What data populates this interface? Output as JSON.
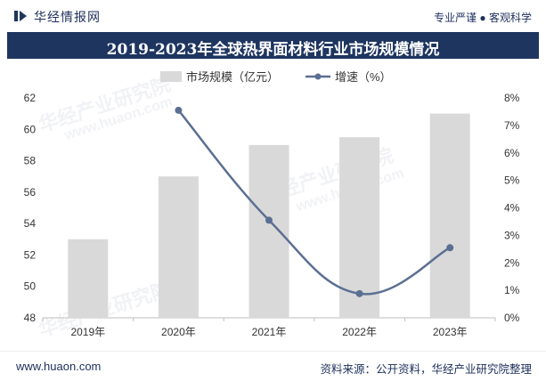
{
  "header": {
    "brand_icon": "huajing-logo-icon",
    "brand_name": "华经情报网",
    "slogan": "专业严谨 ● 客观科学"
  },
  "title": "2019-2023年全球热界面材料行业市场规模情况",
  "footer": {
    "website": "www.huaon.com",
    "source": "资料来源：公开资料，华经产业研究院整理"
  },
  "watermark": {
    "text": "华经产业研究院",
    "url": "www.huaon.com"
  },
  "colors": {
    "bar": "#d9d9d9",
    "line": "#5b6f93",
    "header_bg": "#1e3560",
    "text": "#1d2f5c"
  },
  "chart_data": {
    "type": "bar+line",
    "title": "2019-2023年全球热界面材料行业市场规模情况",
    "categories": [
      "2019年",
      "2020年",
      "2021年",
      "2022年",
      "2023年"
    ],
    "series": [
      {
        "name": "市场规模（亿元）",
        "type": "bar",
        "axis": "left",
        "values": [
          53,
          57,
          59,
          59.5,
          61
        ]
      },
      {
        "name": "增速（%）",
        "type": "line",
        "axis": "right",
        "values": [
          null,
          7.55,
          3.55,
          0.88,
          2.55
        ]
      }
    ],
    "y_left": {
      "min": 48,
      "max": 62,
      "ticks": [
        48,
        50,
        52,
        54,
        56,
        58,
        60,
        62
      ]
    },
    "y_right": {
      "min": 0,
      "max": 8,
      "ticks": [
        "0%",
        "1%",
        "2%",
        "3%",
        "4%",
        "5%",
        "6%",
        "7%",
        "8%"
      ]
    },
    "legend_position": "top-center"
  }
}
